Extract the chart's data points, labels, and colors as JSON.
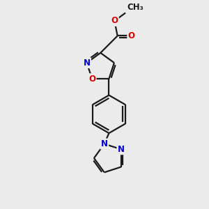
{
  "bg_color": "#ebebeb",
  "bond_color": "#1a1a1a",
  "bond_width": 1.6,
  "atom_colors": {
    "O": "#e00000",
    "N": "#0000cc",
    "C": "#1a1a1a"
  },
  "font_size": 8.5,
  "fig_size": [
    3.0,
    3.0
  ],
  "dpi": 100
}
